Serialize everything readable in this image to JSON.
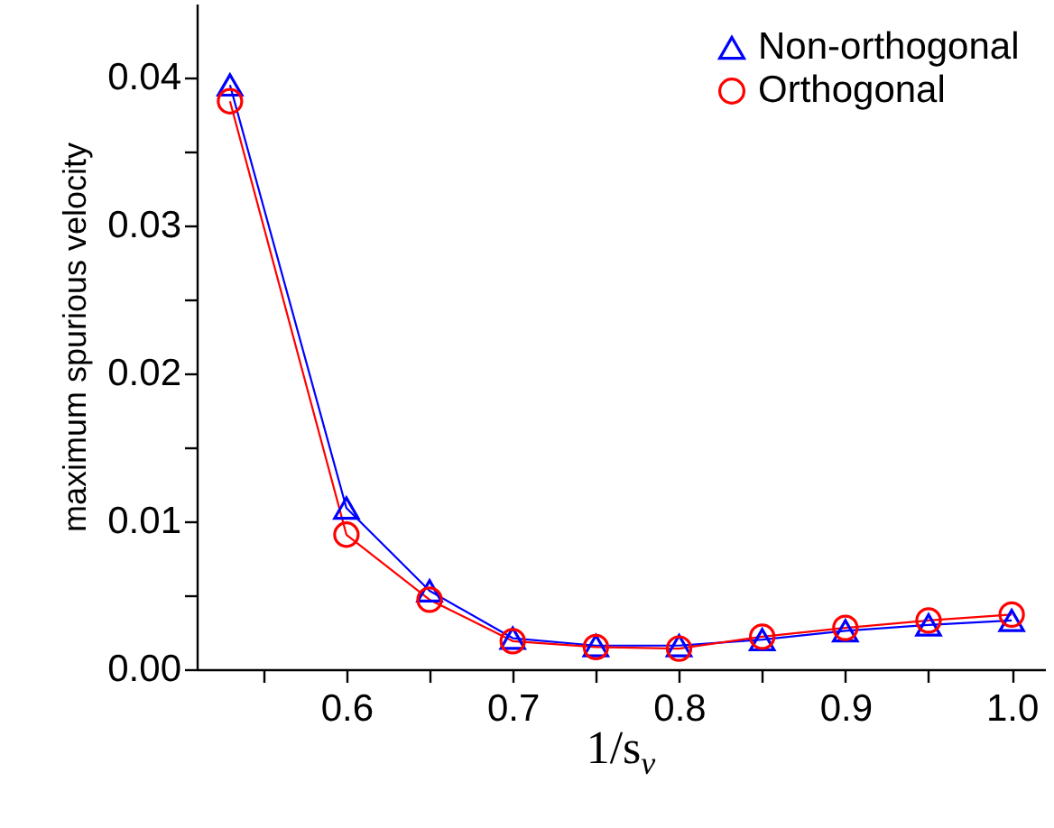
{
  "chart_data": {
    "type": "line",
    "xlabel": "1/s$_{ν}$",
    "ylabel": "maximum spurious velocity",
    "x": [
      0.53,
      0.6,
      0.65,
      0.7,
      0.75,
      0.8,
      0.85,
      0.9,
      0.95,
      1.0
    ],
    "series": [
      {
        "name": "Non-orthogonal",
        "color": "#0000ff",
        "marker": "triangle",
        "values": [
          0.0395,
          0.0109,
          0.0053,
          0.0021,
          0.0016,
          0.0016,
          0.002,
          0.0026,
          0.003,
          0.0033
        ]
      },
      {
        "name": "Orthogonal",
        "color": "#ff0000",
        "marker": "circle",
        "values": [
          0.0384,
          0.0091,
          0.0047,
          0.0019,
          0.0015,
          0.0014,
          0.0022,
          0.0028,
          0.0033,
          0.0037
        ]
      }
    ],
    "xlim": [
      0.51,
      1.02
    ],
    "xticks": [
      {
        "value": 0.55,
        "label": null
      },
      0.6,
      {
        "value": 0.65,
        "label": null
      },
      0.7,
      {
        "value": 0.75,
        "label": null
      },
      0.8,
      {
        "value": 0.85,
        "label": null
      },
      0.9,
      {
        "value": 0.95,
        "label": null
      },
      {
        "value": 1,
        "label": "1.0"
      }
    ],
    "ylim": [
      0,
      0.045
    ],
    "yticks": [
      {
        "value": 0,
        "label": "0.00"
      },
      {
        "value": 0.005,
        "label": null
      },
      0.01,
      {
        "value": 0.015,
        "label": null
      },
      0.02,
      {
        "value": 0.025,
        "label": null
      },
      0.03,
      {
        "value": 0.035,
        "label": null
      },
      0.04
    ],
    "legend": "top right",
    "grid": false,
    "line_style": "solid"
  }
}
